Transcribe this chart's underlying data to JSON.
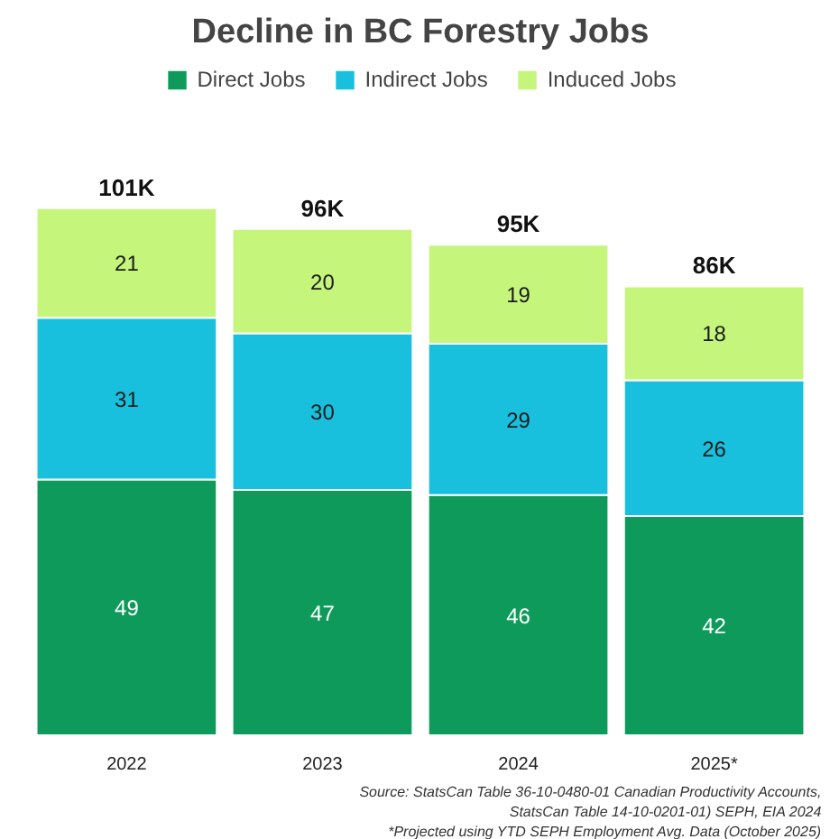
{
  "chart_data": {
    "type": "bar",
    "title": "Decline in BC Forestry Jobs",
    "categories": [
      "2022",
      "2023",
      "2024",
      "2025*"
    ],
    "stacked": true,
    "data_labels": true,
    "legend": "top",
    "grid": false,
    "series": [
      {
        "name": "Direct Jobs",
        "color": "#0e9a5a",
        "values": [
          49,
          47,
          46,
          42
        ]
      },
      {
        "name": "Indirect Jobs",
        "color": "#18c0de",
        "values": [
          31,
          30,
          29,
          26
        ]
      },
      {
        "name": "Induced Jobs",
        "color": "#c6f57c",
        "values": [
          21,
          20,
          19,
          18
        ]
      }
    ],
    "totals": [
      "101K",
      "96K",
      "95K",
      "86K"
    ],
    "annotations": [
      "Source: StatsCan Table 36-10-0480-01 Canadian Productivity Accounts,",
      "StatsCan Table 14-10-0201-01) SEPH, EIA 2024",
      "*Projected using YTD SEPH Employment Avg. Data (October 2025)"
    ]
  }
}
